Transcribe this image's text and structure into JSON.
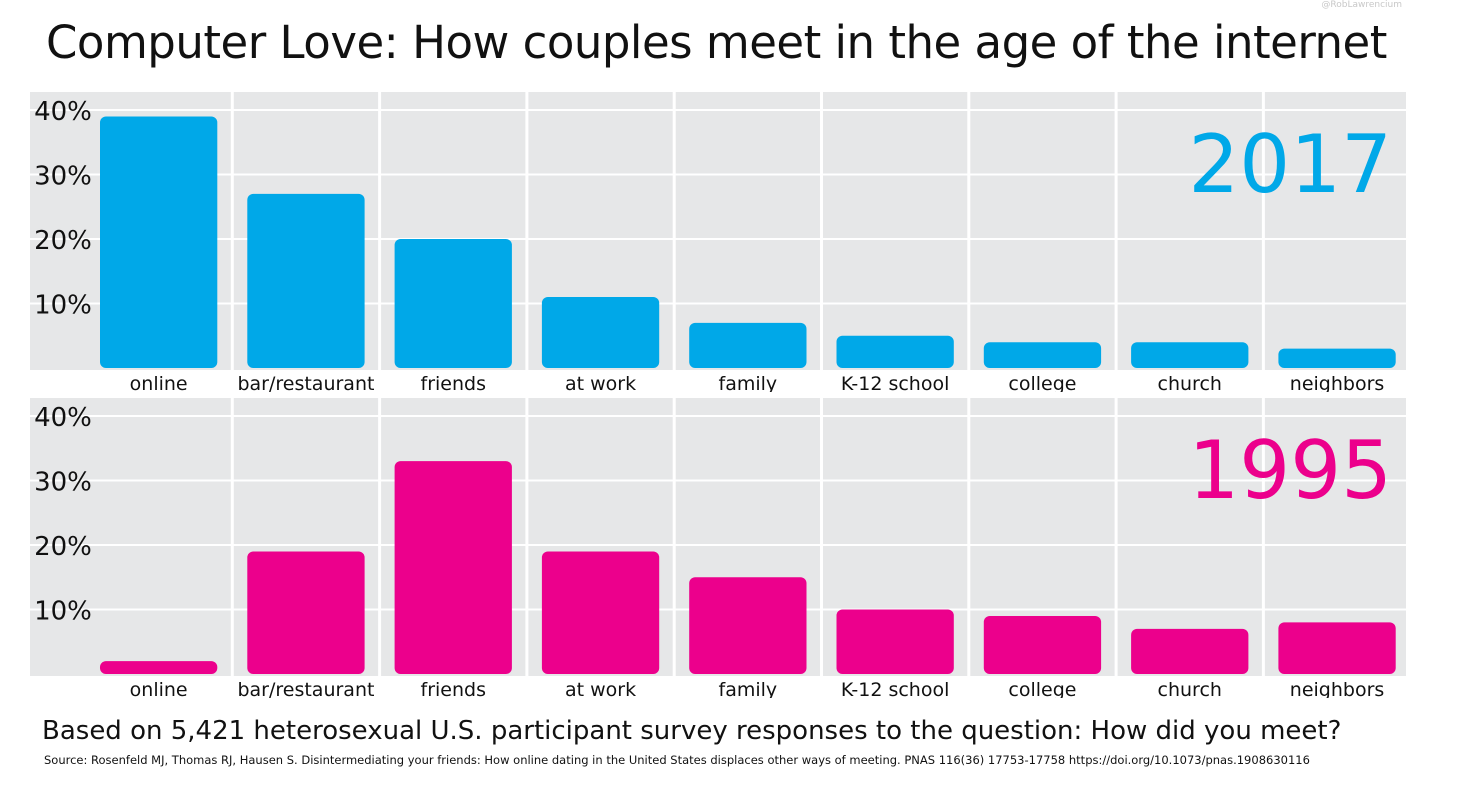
{
  "credit": "@RobLawrencium",
  "title": "Computer Love: How couples meet in the age of the internet",
  "subtitle": "Based on 5,421 heterosexual U.S. participant survey responses to the question: How did you meet?",
  "source": "Source: Rosenfeld MJ, Thomas RJ, Hausen S. Disintermediating your friends: How online dating in the United States displaces other ways of meeting. PNAS 116(36) 17753-17758 https://doi.org/10.1073/pnas.1908630116",
  "colors": {
    "2017": "#00a8e8",
    "1995": "#ec008c",
    "panel_bg": "#e6e7e8",
    "grid": "#ffffff"
  },
  "chart_data": [
    {
      "type": "bar",
      "title": "2017",
      "categories": [
        "online",
        "bar/restaurant",
        "friends",
        "at work",
        "family",
        "K-12 school",
        "college",
        "church",
        "neighbors"
      ],
      "values": [
        39,
        27,
        20,
        11,
        7,
        5,
        4,
        4,
        3
      ],
      "yticks": [
        "10%",
        "20%",
        "30%",
        "40%"
      ],
      "ylim": [
        0,
        40
      ],
      "grid": true
    },
    {
      "type": "bar",
      "title": "1995",
      "categories": [
        "online",
        "bar/restaurant",
        "friends",
        "at work",
        "family",
        "K-12 school",
        "college",
        "church",
        "neighbors"
      ],
      "values": [
        2,
        19,
        33,
        19,
        15,
        10,
        9,
        7,
        8
      ],
      "yticks": [
        "10%",
        "20%",
        "30%",
        "40%"
      ],
      "ylim": [
        0,
        40
      ],
      "grid": true
    }
  ]
}
